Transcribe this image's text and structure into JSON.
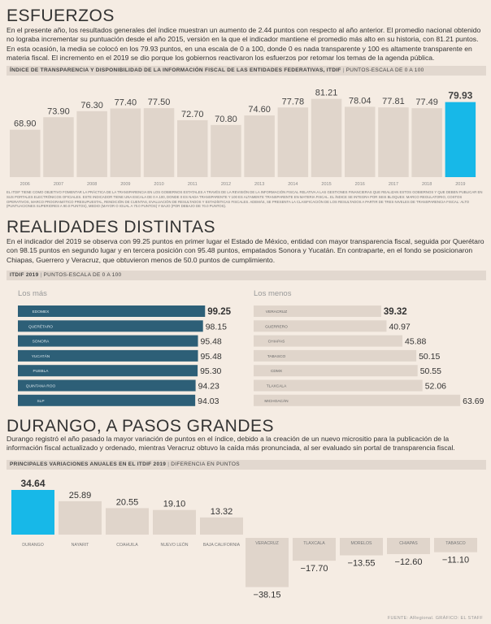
{
  "sections": {
    "s1": {
      "title": "ESFUERZOS",
      "paragraph": "En el presente año, los resultados generales del índice muestran un aumento de 2.44 puntos con respecto al año anterior. El promedio nacional obtenido no lograba incrementar su puntuación desde el año 2015, versión en la que el indicador mantiene el promedio más alto en su historia, con 81.21 puntos. En esta ocasión, la media se colocó en los 79.93 puntos, en una escala de 0 a 100, donde 0 es nada transparente y 100 es altamente transparente en materia fiscal. El incremento en el 2019 se dio porque los gobiernos reactivaron los esfuerzos por retomar los temas de la agenda pública.",
      "chart_title_bold": "ÍNDICE DE TRANSPARENCIA Y DISPONIBILIDAD DE LA INFORMACIÓN FISCAL DE LAS ENTIDADES FEDERATIVAS, ITDIF",
      "chart_title_sep": "|",
      "chart_title_sub": "PUNTOS-ESCALA DE 0 A 100",
      "note": "El ITDIF tiene como objetivo fomentar la práctica de la transparencia en los gobiernos estatales a través de la revisión de la información fiscal relativa a las gestiones financieras que realizan estos gobiernos y que deben publicar en sus portales electrónicos oficiales. Este indicador tiene una escala de 0 a 100, donde 0 es nada transparente y 100 es altamente transparente en materia fiscal. El índice se integra por seis bloques: marco regulatorio, costos operativos, marco programático presupuestal, rendición de cuentas, evaluación de resultados y estadísticas fiscales. Además, se presenta la clasificación de los resultados a partir de tres niveles de transparencia fiscal: alto (puntuaciones superiores a 90.0 puntos), medio (mayor o igual a 70.0 puntos) y bajo (por debajo de 70.0 puntos)."
    },
    "s2": {
      "title": "REALIDADES DISTINTAS",
      "paragraph": "En el indicador del 2019 se observa con 99.25 puntos en primer lugar el Estado de México, entidad con mayor transparencia fiscal, seguida por Querétaro con 98.15 puntos en segundo lugar y en tercera posición con 95.48 puntos, empatados Sonora y Yucatán. En contraparte, en el fondo se posicionaron Chiapas, Guerrero y Veracruz, que obtuvieron menos de 50.0 puntos de cumplimiento.",
      "chart_title_bold": "ITDIF 2019",
      "chart_title_sep": "|",
      "chart_title_sub": "PUNTOS-ESCALA DE 0 A 100",
      "left_heading": "Los más",
      "right_heading": "Los menos"
    },
    "s3": {
      "title": "DURANGO, A PASOS GRANDES",
      "paragraph": "Durango registró el año pasado la mayor variación de puntos en el índice, debido a la creación de un nuevo micrositio para la publicación de la información fiscal actualizado y ordenado, mientras Veracruz obtuvo la caída más pronunciada, al ser evaluado sin portal de transparencia fiscal.",
      "chart_title_bold": "PRINCIPALES VARIACIONES ANUALES EN EL ITDIF 2019",
      "chart_title_sep": "|",
      "chart_title_sub": "DIFERENCIA EN PUNTOS"
    },
    "source": "FUENTE: ARegional. GRÁFICO: EL STAFF"
  },
  "colors": {
    "background": "#f5ece3",
    "bar_gray": "#e0d5cb",
    "bar_highlight": "#17b8e8",
    "bar_teal": "#2d5f77"
  },
  "chart_data": [
    {
      "type": "bar",
      "categories": [
        "2006",
        "2007",
        "2008",
        "2009",
        "2010",
        "2011",
        "2012",
        "2013",
        "2014",
        "2015",
        "2016",
        "2017",
        "2018",
        "2019"
      ],
      "values": [
        68.9,
        73.9,
        76.3,
        77.4,
        77.5,
        72.7,
        70.8,
        74.6,
        77.78,
        81.21,
        78.04,
        77.81,
        77.49,
        79.93
      ],
      "labels": [
        "68.90",
        "73.90",
        "76.30",
        "77.40",
        "77.50",
        "72.70",
        "70.80",
        "74.60",
        "77.78",
        "81.21",
        "78.04",
        "77.81",
        "77.49",
        "79.93"
      ],
      "highlight": "2019",
      "ylim": [
        50,
        85
      ]
    },
    {
      "type": "bar",
      "orientation": "horizontal",
      "categories": [
        "EDOMEX",
        "QUERÉTARO",
        "SONORA",
        "YUCATÁN",
        "PUEBLA",
        "QUINTANA ROO",
        "SLP"
      ],
      "values": [
        99.25,
        98.15,
        95.48,
        95.48,
        95.3,
        94.23,
        94.03
      ],
      "labels": [
        "99.25",
        "98.15",
        "95.48",
        "95.48",
        "95.30",
        "94.23",
        "94.03"
      ],
      "xlim": [
        0,
        100
      ]
    },
    {
      "type": "bar",
      "orientation": "horizontal",
      "categories": [
        "VERACRUZ",
        "GUERRERO",
        "CHIAPAS",
        "TABASCO",
        "CDMX",
        "TLAXCALA",
        "MICHOACÁN"
      ],
      "values": [
        39.32,
        40.97,
        45.88,
        50.15,
        50.55,
        52.06,
        63.69
      ],
      "labels": [
        "39.32",
        "40.97",
        "45.88",
        "50.15",
        "50.55",
        "52.06",
        "63.69"
      ],
      "xlim": [
        0,
        100
      ]
    },
    {
      "type": "bar",
      "categories": [
        "DURANGO",
        "NAYARIT",
        "COAHUILA",
        "NUEVO LEÓN",
        "BAJA CALIFORNIA",
        "VERACRUZ",
        "TLAXCALA",
        "MORELOS",
        "CHIAPAS",
        "TABASCO"
      ],
      "values": [
        34.64,
        25.89,
        20.55,
        19.1,
        13.32,
        -38.15,
        -17.7,
        -13.55,
        -12.6,
        -11.1
      ],
      "labels": [
        "34.64",
        "25.89",
        "20.55",
        "19.10",
        "13.32",
        "−38.15",
        "−17.70",
        "−13.55",
        "−12.60",
        "−11.10"
      ],
      "highlight": "DURANGO"
    }
  ]
}
